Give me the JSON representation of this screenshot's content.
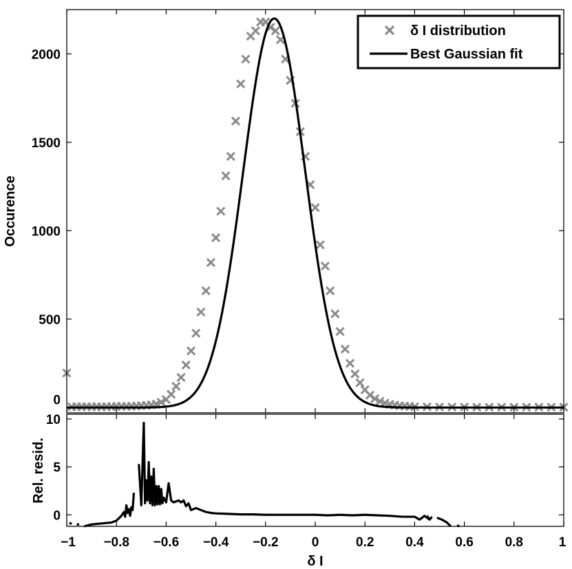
{
  "chart_data": [
    {
      "type": "scatter",
      "panel": "main",
      "title": "",
      "xlabel": "δ I",
      "ylabel": "Occurence",
      "xlim": [
        -1,
        1
      ],
      "ylim": [
        -30,
        2250
      ],
      "yticks": [
        0,
        500,
        1000,
        1500,
        2000
      ],
      "ytick_labels": [
        "0",
        "500",
        "1000",
        "1500",
        "2000"
      ],
      "legend": {
        "position": "top-right",
        "entries": [
          "δ I distribution",
          "Best Gaussian fit"
        ]
      },
      "series": [
        {
          "name": "δ I distribution",
          "kind": "markers",
          "marker": "x",
          "color": "#8a8a8a",
          "x": [
            -1.0,
            -0.98,
            -0.96,
            -0.94,
            -0.92,
            -0.9,
            -0.88,
            -0.86,
            -0.84,
            -0.82,
            -0.8,
            -0.78,
            -0.76,
            -0.74,
            -0.72,
            -0.7,
            -0.68,
            -0.66,
            -0.64,
            -0.62,
            -0.6,
            -0.58,
            -0.56,
            -0.54,
            -0.52,
            -0.5,
            -0.48,
            -0.46,
            -0.44,
            -0.42,
            -0.4,
            -0.38,
            -0.36,
            -0.34,
            -0.32,
            -0.3,
            -0.28,
            -0.26,
            -0.24,
            -0.22,
            -0.2,
            -0.18,
            -0.16,
            -0.14,
            -0.12,
            -0.1,
            -0.08,
            -0.06,
            -0.04,
            -0.02,
            0.0,
            0.02,
            0.04,
            0.06,
            0.08,
            0.1,
            0.12,
            0.14,
            0.16,
            0.18,
            0.2,
            0.22,
            0.24,
            0.26,
            0.28,
            0.3,
            0.32,
            0.34,
            0.36,
            0.38,
            0.4,
            0.45,
            0.5,
            0.55,
            0.6,
            0.65,
            0.7,
            0.75,
            0.8,
            0.85,
            0.9,
            0.95,
            1.0
          ],
          "y": [
            195,
            4,
            5,
            4,
            5,
            4,
            5,
            4,
            5,
            5,
            6,
            6,
            6,
            7,
            8,
            10,
            12,
            15,
            20,
            30,
            45,
            75,
            120,
            170,
            240,
            320,
            420,
            540,
            660,
            820,
            960,
            1110,
            1310,
            1420,
            1620,
            1830,
            1970,
            2100,
            2130,
            2180,
            2180,
            2150,
            2130,
            2080,
            1970,
            1850,
            1720,
            1560,
            1420,
            1260,
            1130,
            920,
            800,
            660,
            530,
            430,
            330,
            250,
            190,
            140,
            100,
            70,
            50,
            35,
            25,
            18,
            14,
            10,
            8,
            6,
            5,
            4,
            3,
            3,
            3,
            2,
            2,
            2,
            2,
            2,
            2,
            2,
            2
          ]
        },
        {
          "name": "Best Gaussian fit",
          "kind": "line",
          "color": "#000000",
          "model": "gaussian",
          "amplitude": 2200,
          "mean": -0.165,
          "sigma": 0.125
        }
      ]
    },
    {
      "type": "line",
      "panel": "residual",
      "xlabel": "δ I",
      "ylabel": "Rel. resid.",
      "xlim": [
        -1,
        1
      ],
      "ylim": [
        -1.2,
        10.5
      ],
      "xticks": [
        -1,
        -0.8,
        -0.6,
        -0.4,
        -0.2,
        0,
        0.2,
        0.4,
        0.6,
        0.8,
        1
      ],
      "xtick_labels": [
        "−1",
        "−0.8",
        "−0.6",
        "−0.4",
        "−0.2",
        "0",
        "0.2",
        "0.4",
        "0.6",
        "0.8",
        "1"
      ],
      "yticks": [
        0,
        5,
        10
      ],
      "ytick_labels": [
        "0",
        "5",
        "10"
      ],
      "series": [
        {
          "name": "Relative residual",
          "color": "#000000",
          "segments": [
            {
              "x": [
                -0.99,
                -0.98
              ],
              "y": [
                -0.9,
                -0.9
              ]
            },
            {
              "x": [
                -0.96,
                -0.95
              ],
              "y": [
                -1.0,
                -1.0
              ]
            },
            {
              "x": [
                -0.93,
                -0.9,
                -0.86,
                -0.82,
                -0.8,
                -0.78,
                -0.77,
                -0.765,
                -0.76,
                -0.755,
                -0.75,
                -0.745,
                -0.74,
                -0.735,
                -0.73
              ],
              "y": [
                -1.2,
                -1.0,
                -0.9,
                -0.8,
                -0.6,
                -0.1,
                0.3,
                -0.2,
                1.0,
                0.2,
                0.6,
                -0.1,
                0.8,
                0.5,
                2.3
              ]
            },
            {
              "x": [
                -0.71,
                -0.7,
                -0.69,
                -0.685,
                -0.68,
                -0.675,
                -0.67,
                -0.665,
                -0.66,
                -0.655,
                -0.65,
                -0.645,
                -0.64,
                -0.635,
                -0.63,
                -0.625,
                -0.62,
                -0.615,
                -0.61,
                -0.6,
                -0.59,
                -0.58,
                -0.57,
                -0.56,
                -0.55,
                -0.54,
                -0.53,
                -0.52,
                -0.51,
                -0.5,
                -0.48,
                -0.46,
                -0.44,
                -0.42,
                -0.4,
                -0.35,
                -0.3,
                -0.25,
                -0.2,
                -0.1,
                0.0,
                0.05,
                0.1,
                0.15,
                0.2,
                0.25,
                0.3,
                0.35,
                0.4,
                0.42,
                0.44,
                0.46
              ],
              "y": [
                5.3,
                1.0,
                9.6,
                1.2,
                3.6,
                1.5,
                5.5,
                1.2,
                4.0,
                1.0,
                4.8,
                1.0,
                3.0,
                1.1,
                3.0,
                1.1,
                2.7,
                1.2,
                1.8,
                1.3,
                3.3,
                1.5,
                1.3,
                1.4,
                1.5,
                1.3,
                1.5,
                0.9,
                1.2,
                0.5,
                0.7,
                0.5,
                0.3,
                0.2,
                0.15,
                0.1,
                0.05,
                0.05,
                0.0,
                0.0,
                0.0,
                -0.05,
                0.0,
                -0.05,
                0.0,
                -0.05,
                -0.1,
                -0.2,
                -0.2,
                -0.5,
                -0.1,
                -0.5
              ]
            },
            {
              "x": [
                0.45,
                0.46,
                0.47
              ],
              "y": [
                -0.1,
                -0.5,
                -0.2
              ]
            },
            {
              "x": [
                0.49,
                0.51,
                0.53,
                0.545
              ],
              "y": [
                -0.3,
                -0.5,
                -0.8,
                -1.2
              ]
            },
            {
              "x": [
                0.57,
                0.58
              ],
              "y": [
                -1.1,
                -1.2
              ]
            }
          ]
        }
      ]
    }
  ]
}
